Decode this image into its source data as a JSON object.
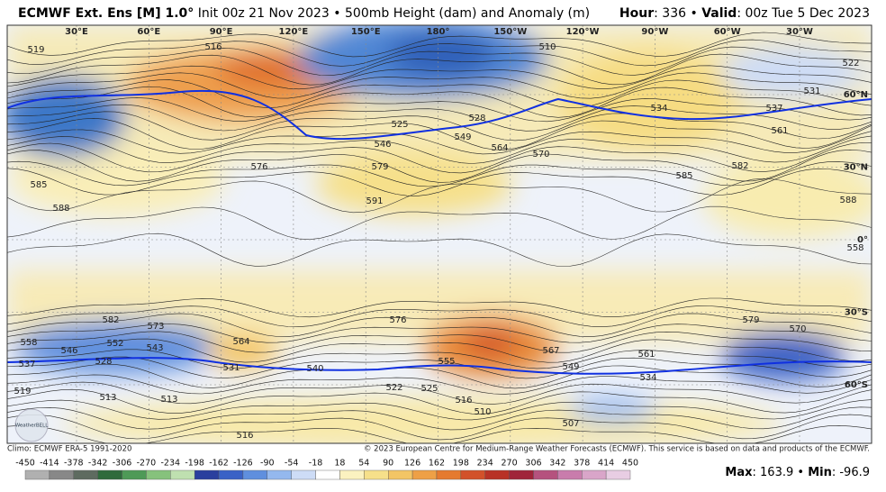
{
  "header": {
    "title": "ECMWF Ext. Ens [M] 1.0°",
    "subtitle": " Init 00z 21 Nov 2023 • 500mb Height (dam) and Anomaly (m)",
    "hour_label": "Hour",
    "hour_text": ": 336 • ",
    "valid_label": "Valid",
    "valid_text": ": 00z Tue 5 Dec 2023"
  },
  "map": {
    "longitudes": [
      "30°E",
      "60°E",
      "90°E",
      "120°E",
      "150°E",
      "180°",
      "150°W",
      "120°W",
      "90°W",
      "60°W",
      "30°W"
    ],
    "latitudes": [
      "60°N",
      "30°N",
      "0°",
      "30°S",
      "60°S"
    ],
    "contour_labels": [
      "519",
      "516",
      "510",
      "522",
      "531",
      "537",
      "534",
      "528",
      "525",
      "546",
      "549",
      "564",
      "570",
      "561",
      "582",
      "579",
      "585",
      "588",
      "591",
      "588",
      "585",
      "576",
      "582",
      "573",
      "558",
      "546",
      "552",
      "543",
      "528",
      "537",
      "564",
      "531",
      "540",
      "576",
      "567",
      "555",
      "549",
      "561",
      "534",
      "579",
      "570",
      "519",
      "513",
      "513",
      "522",
      "525",
      "516",
      "510",
      "507",
      "516",
      "558"
    ],
    "logo": "WeatherBELL"
  },
  "footer": {
    "climo": "Climo: ECMWF ERA-5 1991-2020",
    "copyright": "© 2023 European Centre for Medium-Range Weather Forecasts (ECMWF). This service is based on data and products of the ECMWF."
  },
  "colorbar": {
    "ticks": [
      -450,
      -414,
      -378,
      -342,
      -306,
      -270,
      -234,
      -198,
      -162,
      -126,
      -90,
      -54,
      -18,
      18,
      54,
      90,
      126,
      162,
      198,
      234,
      270,
      306,
      342,
      378,
      414,
      450
    ],
    "colors": [
      "#b0b0b0",
      "#888888",
      "#5e6b60",
      "#2f6b3c",
      "#4e9a57",
      "#86c27c",
      "#bfe0b0",
      "#2a3f9e",
      "#3a62c6",
      "#5f8fde",
      "#94b8ee",
      "#cddcf6",
      "#ffffff",
      "#fbf2c0",
      "#f6e08a",
      "#f3c565",
      "#eea046",
      "#e57a2f",
      "#d2512a",
      "#b83226",
      "#a0243a",
      "#b5527e",
      "#c97cac",
      "#d9a5c9",
      "#e8cde3"
    ]
  },
  "stats": {
    "max_label": "Max",
    "max_text": ": 163.9 • ",
    "min_label": "Min",
    "min_text": ": -96.9"
  }
}
